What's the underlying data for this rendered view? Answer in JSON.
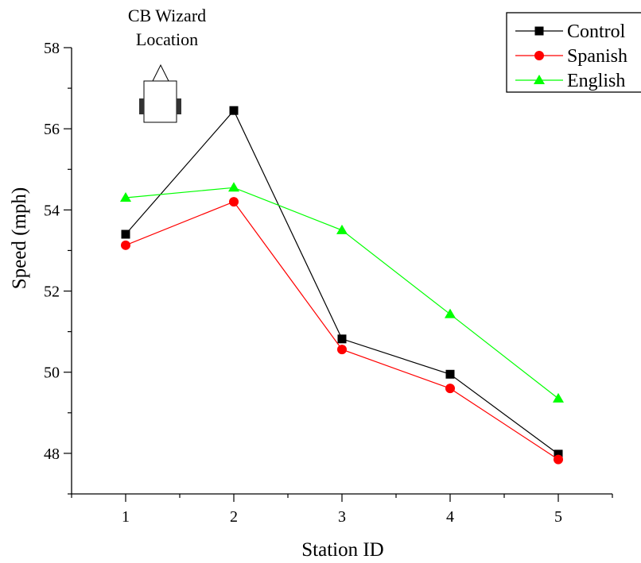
{
  "chart_data": {
    "type": "line",
    "title": "",
    "xlabel": "Station ID",
    "ylabel": "Speed (mph)",
    "x": [
      1,
      2,
      3,
      4,
      5
    ],
    "xlim": [
      0.5,
      5.5
    ],
    "ylim": [
      47,
      58
    ],
    "yticks": [
      48,
      50,
      52,
      54,
      56,
      58
    ],
    "grid": false,
    "legend_position": "top-right",
    "series": [
      {
        "name": "Control",
        "color": "#000000",
        "marker": "square",
        "values": [
          53.4,
          56.45,
          50.82,
          49.95,
          47.98
        ]
      },
      {
        "name": "Spanish",
        "color": "#ff0000",
        "marker": "circle",
        "values": [
          53.13,
          54.2,
          50.56,
          49.6,
          47.85
        ]
      },
      {
        "name": "English",
        "color": "#00ff00",
        "marker": "triangle",
        "values": [
          54.3,
          54.55,
          53.5,
          51.43,
          49.35
        ]
      }
    ],
    "annotation": {
      "line1": "CB Wizard",
      "line2": "Location",
      "icon": "vehicle-icon",
      "x": 1.32
    }
  }
}
